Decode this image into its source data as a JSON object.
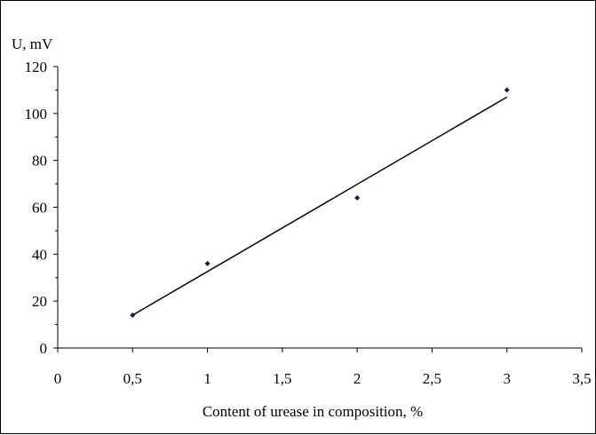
{
  "chart_data": {
    "type": "scatter",
    "ylabel": "U, mV",
    "xlabel": "Content of urease in composition, %",
    "xlim": [
      0,
      3.5
    ],
    "ylim": [
      0,
      120
    ],
    "x_ticks": [
      "0",
      "0,5",
      "1",
      "1,5",
      "2",
      "2,5",
      "3",
      "3,5"
    ],
    "x_tick_values": [
      0,
      0.5,
      1,
      1.5,
      2,
      2.5,
      3,
      3.5
    ],
    "y_ticks": [
      "0",
      "20",
      "40",
      "60",
      "80",
      "100",
      "120"
    ],
    "y_tick_values": [
      0,
      20,
      40,
      60,
      80,
      100,
      120
    ],
    "grid": false,
    "legend": "none",
    "series": [
      {
        "x": [
          0.5,
          1,
          2,
          3
        ],
        "y": [
          14,
          36,
          64,
          110
        ]
      }
    ],
    "trendline": {
      "type": "linear",
      "x": [
        0.5,
        3
      ],
      "y": [
        14,
        107
      ]
    },
    "colors": {
      "marker": "#1a1a40",
      "line": "#000000",
      "axis": "#000000"
    }
  }
}
